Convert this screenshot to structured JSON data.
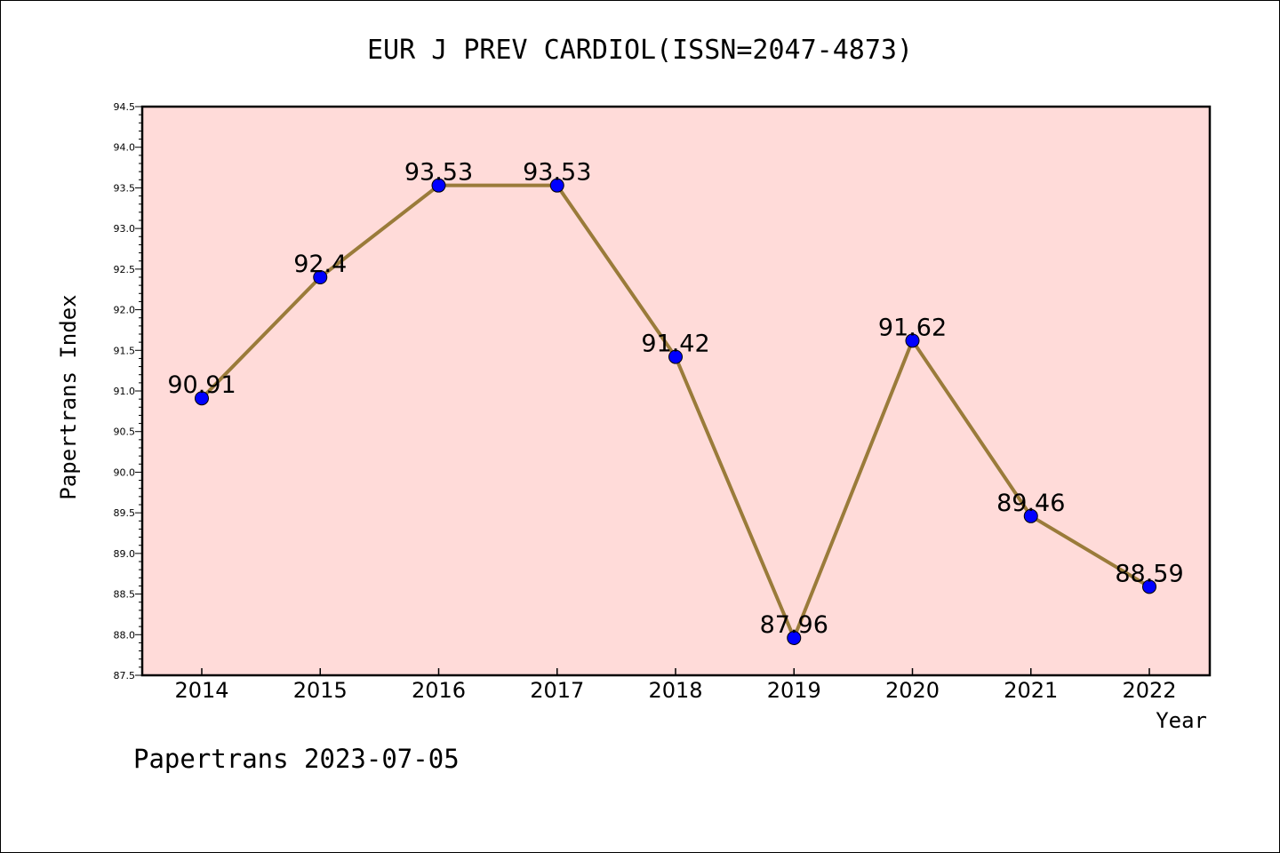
{
  "chart_data": {
    "type": "line",
    "title": "EUR J PREV CARDIOL(ISSN=2047-4873)",
    "xlabel": "Year",
    "ylabel": "Papertrans Index",
    "categories": [
      "2014",
      "2015",
      "2016",
      "2017",
      "2018",
      "2019",
      "2020",
      "2021",
      "2022"
    ],
    "series": [
      {
        "values": [
          90.91,
          92.4,
          93.53,
          93.53,
          91.42,
          87.96,
          91.62,
          89.46,
          88.59
        ],
        "data_labels": [
          "90.91",
          "92.4",
          "93.53",
          "93.53",
          "91.42",
          "87.96",
          "91.62",
          "89.46",
          "88.59"
        ]
      }
    ],
    "ylim": [
      87.5,
      94.5
    ],
    "yticks": [
      "87.5",
      "88.0",
      "88.5",
      "89.0",
      "89.5",
      "90.0",
      "90.5",
      "91.0",
      "91.5",
      "92.0",
      "92.5",
      "93.0",
      "93.5",
      "94.0",
      "94.5"
    ],
    "grid": false,
    "colors": {
      "plot_background": "#ffdbd9",
      "line": "#9a7b3a",
      "marker": "#0000ff"
    },
    "footer": "Papertrans 2023-07-05"
  }
}
